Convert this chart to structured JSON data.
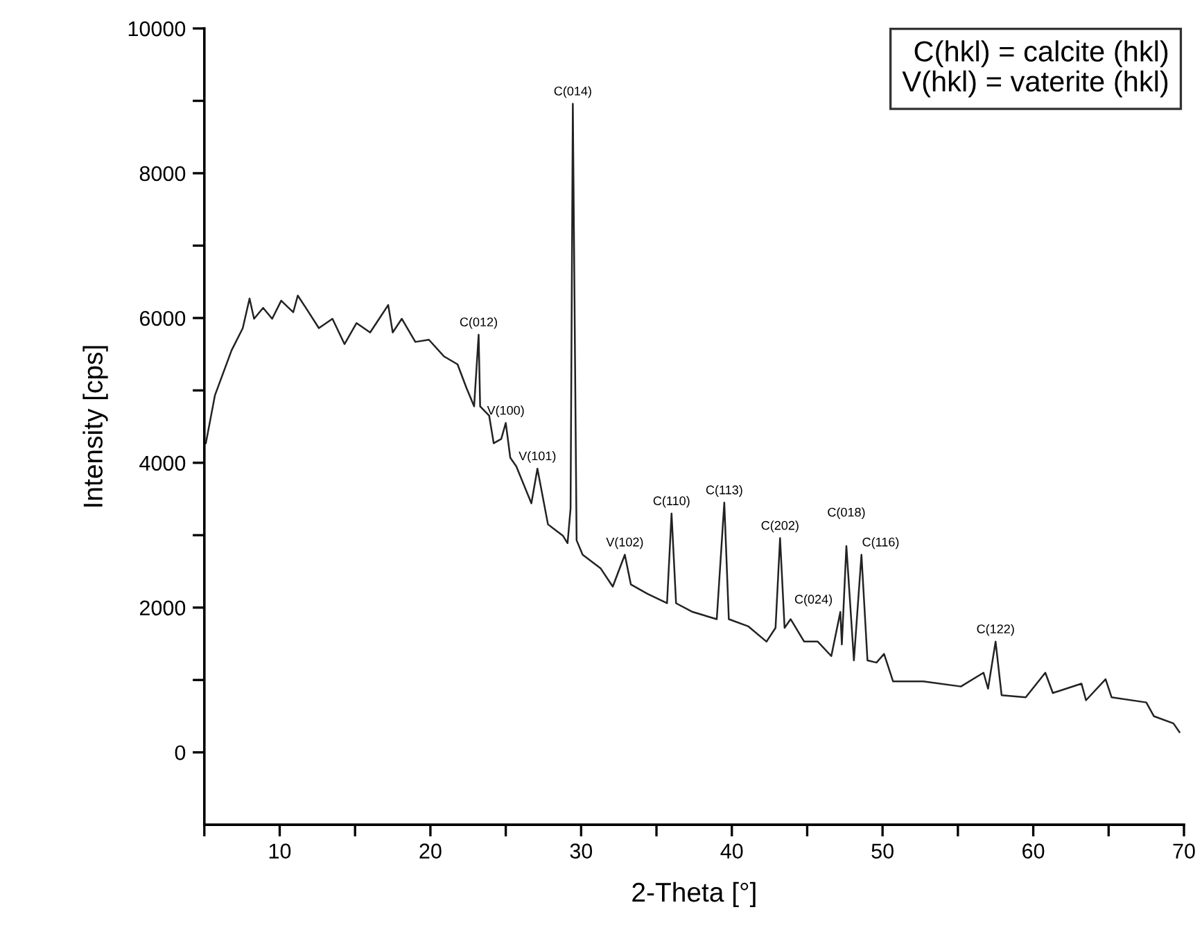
{
  "chart_data": {
    "type": "line",
    "xlabel": "2-Theta [°]",
    "ylabel": "Intensity [cps]",
    "xlim": [
      5,
      70
    ],
    "ylim": [
      -1000,
      10000
    ],
    "xticks": [
      {
        "value": 5,
        "label": null
      },
      10,
      {
        "value": 15,
        "label": null
      },
      20,
      {
        "value": 25,
        "label": null
      },
      30,
      {
        "value": 35,
        "label": null
      },
      40,
      {
        "value": 45,
        "label": null
      },
      50,
      {
        "value": 55,
        "label": null
      },
      60,
      {
        "value": 65,
        "label": null
      },
      70
    ],
    "yticks": [
      0,
      {
        "value": 1000,
        "label": null
      },
      2000,
      {
        "value": 3000,
        "label": null
      },
      4000,
      {
        "value": 5000,
        "label": null
      },
      6000,
      {
        "value": 7000,
        "label": null
      },
      8000,
      {
        "value": 9000,
        "label": null
      },
      10000
    ],
    "grid": false,
    "legend": false,
    "marker": "none",
    "line_style": "solid",
    "series": [
      {
        "color": "#222222",
        "x": [
          5.1,
          5.7,
          6.8,
          7.55,
          8.0,
          8.3,
          8.9,
          9.5,
          10.1,
          10.9,
          11.2,
          11.8,
          12.6,
          13.5,
          14.3,
          15.1,
          16.0,
          16.6,
          17.2,
          17.5,
          18.1,
          19.0,
          19.9,
          20.9,
          21.8,
          22.4,
          22.9,
          23.2,
          23.3,
          23.9,
          24.2,
          24.7,
          25.0,
          25.3,
          25.7,
          26.7,
          27.1,
          27.8,
          28.8,
          29.1,
          29.3,
          29.45,
          29.7,
          30.1,
          31.3,
          32.1,
          32.9,
          33.3,
          34.4,
          35.7,
          36.0,
          36.3,
          37.4,
          39.0,
          39.5,
          39.8,
          41.1,
          42.3,
          42.9,
          43.2,
          43.5,
          43.9,
          44.8,
          45.7,
          46.6,
          47.2,
          47.3,
          47.6,
          48.1,
          48.6,
          49.0,
          49.6,
          50.1,
          50.7,
          52.7,
          55.2,
          56.7,
          57.0,
          57.5,
          57.9,
          59.5,
          60.8,
          61.3,
          63.2,
          63.5,
          64.8,
          65.2,
          67.5,
          68.0,
          69.3,
          69.7
        ],
        "values": [
          4270,
          4930,
          5550,
          5860,
          6270,
          5990,
          6140,
          5990,
          6240,
          6080,
          6310,
          6120,
          5860,
          5990,
          5640,
          5930,
          5800,
          5990,
          6180,
          5800,
          5990,
          5670,
          5700,
          5470,
          5360,
          5030,
          4780,
          5770,
          4780,
          4650,
          4270,
          4330,
          4550,
          4070,
          3950,
          3440,
          3920,
          3150,
          2990,
          2890,
          3370,
          8960,
          2930,
          2730,
          2540,
          2290,
          2730,
          2320,
          2190,
          2060,
          3300,
          2060,
          1940,
          1840,
          3450,
          1840,
          1740,
          1530,
          1720,
          2960,
          1720,
          1840,
          1530,
          1530,
          1330,
          1940,
          1490,
          2850,
          1270,
          2730,
          1270,
          1240,
          1360,
          980,
          980,
          910,
          1100,
          880,
          1530,
          790,
          760,
          1100,
          820,
          950,
          720,
          1010,
          760,
          690,
          500,
          400,
          280
        ]
      }
    ],
    "annotations": [
      "C(hkl) = calcite (hkl)",
      "V(hkl) = vaterite (hkl)",
      {
        "text": "C(012)",
        "x": 23.2,
        "y": 5770
      },
      {
        "text": "V(100)",
        "x": 25.0,
        "y": 4550
      },
      {
        "text": "V(101)",
        "x": 27.1,
        "y": 3920
      },
      {
        "text": "C(014)",
        "x": 29.45,
        "y": 8960
      },
      {
        "text": "V(102)",
        "x": 32.9,
        "y": 2730
      },
      {
        "text": "C(110)",
        "x": 36.0,
        "y": 3300
      },
      {
        "text": "C(113)",
        "x": 39.5,
        "y": 3450
      },
      {
        "text": "C(202)",
        "x": 43.2,
        "y": 2960
      },
      {
        "text": "C(024)",
        "x": 47.2,
        "y": 1940
      },
      {
        "text": "C(018)",
        "x": 47.6,
        "y": 2850
      },
      {
        "text": "C(116)",
        "x": 48.6,
        "y": 2730
      },
      {
        "text": "C(122)",
        "x": 57.5,
        "y": 1530
      }
    ]
  }
}
